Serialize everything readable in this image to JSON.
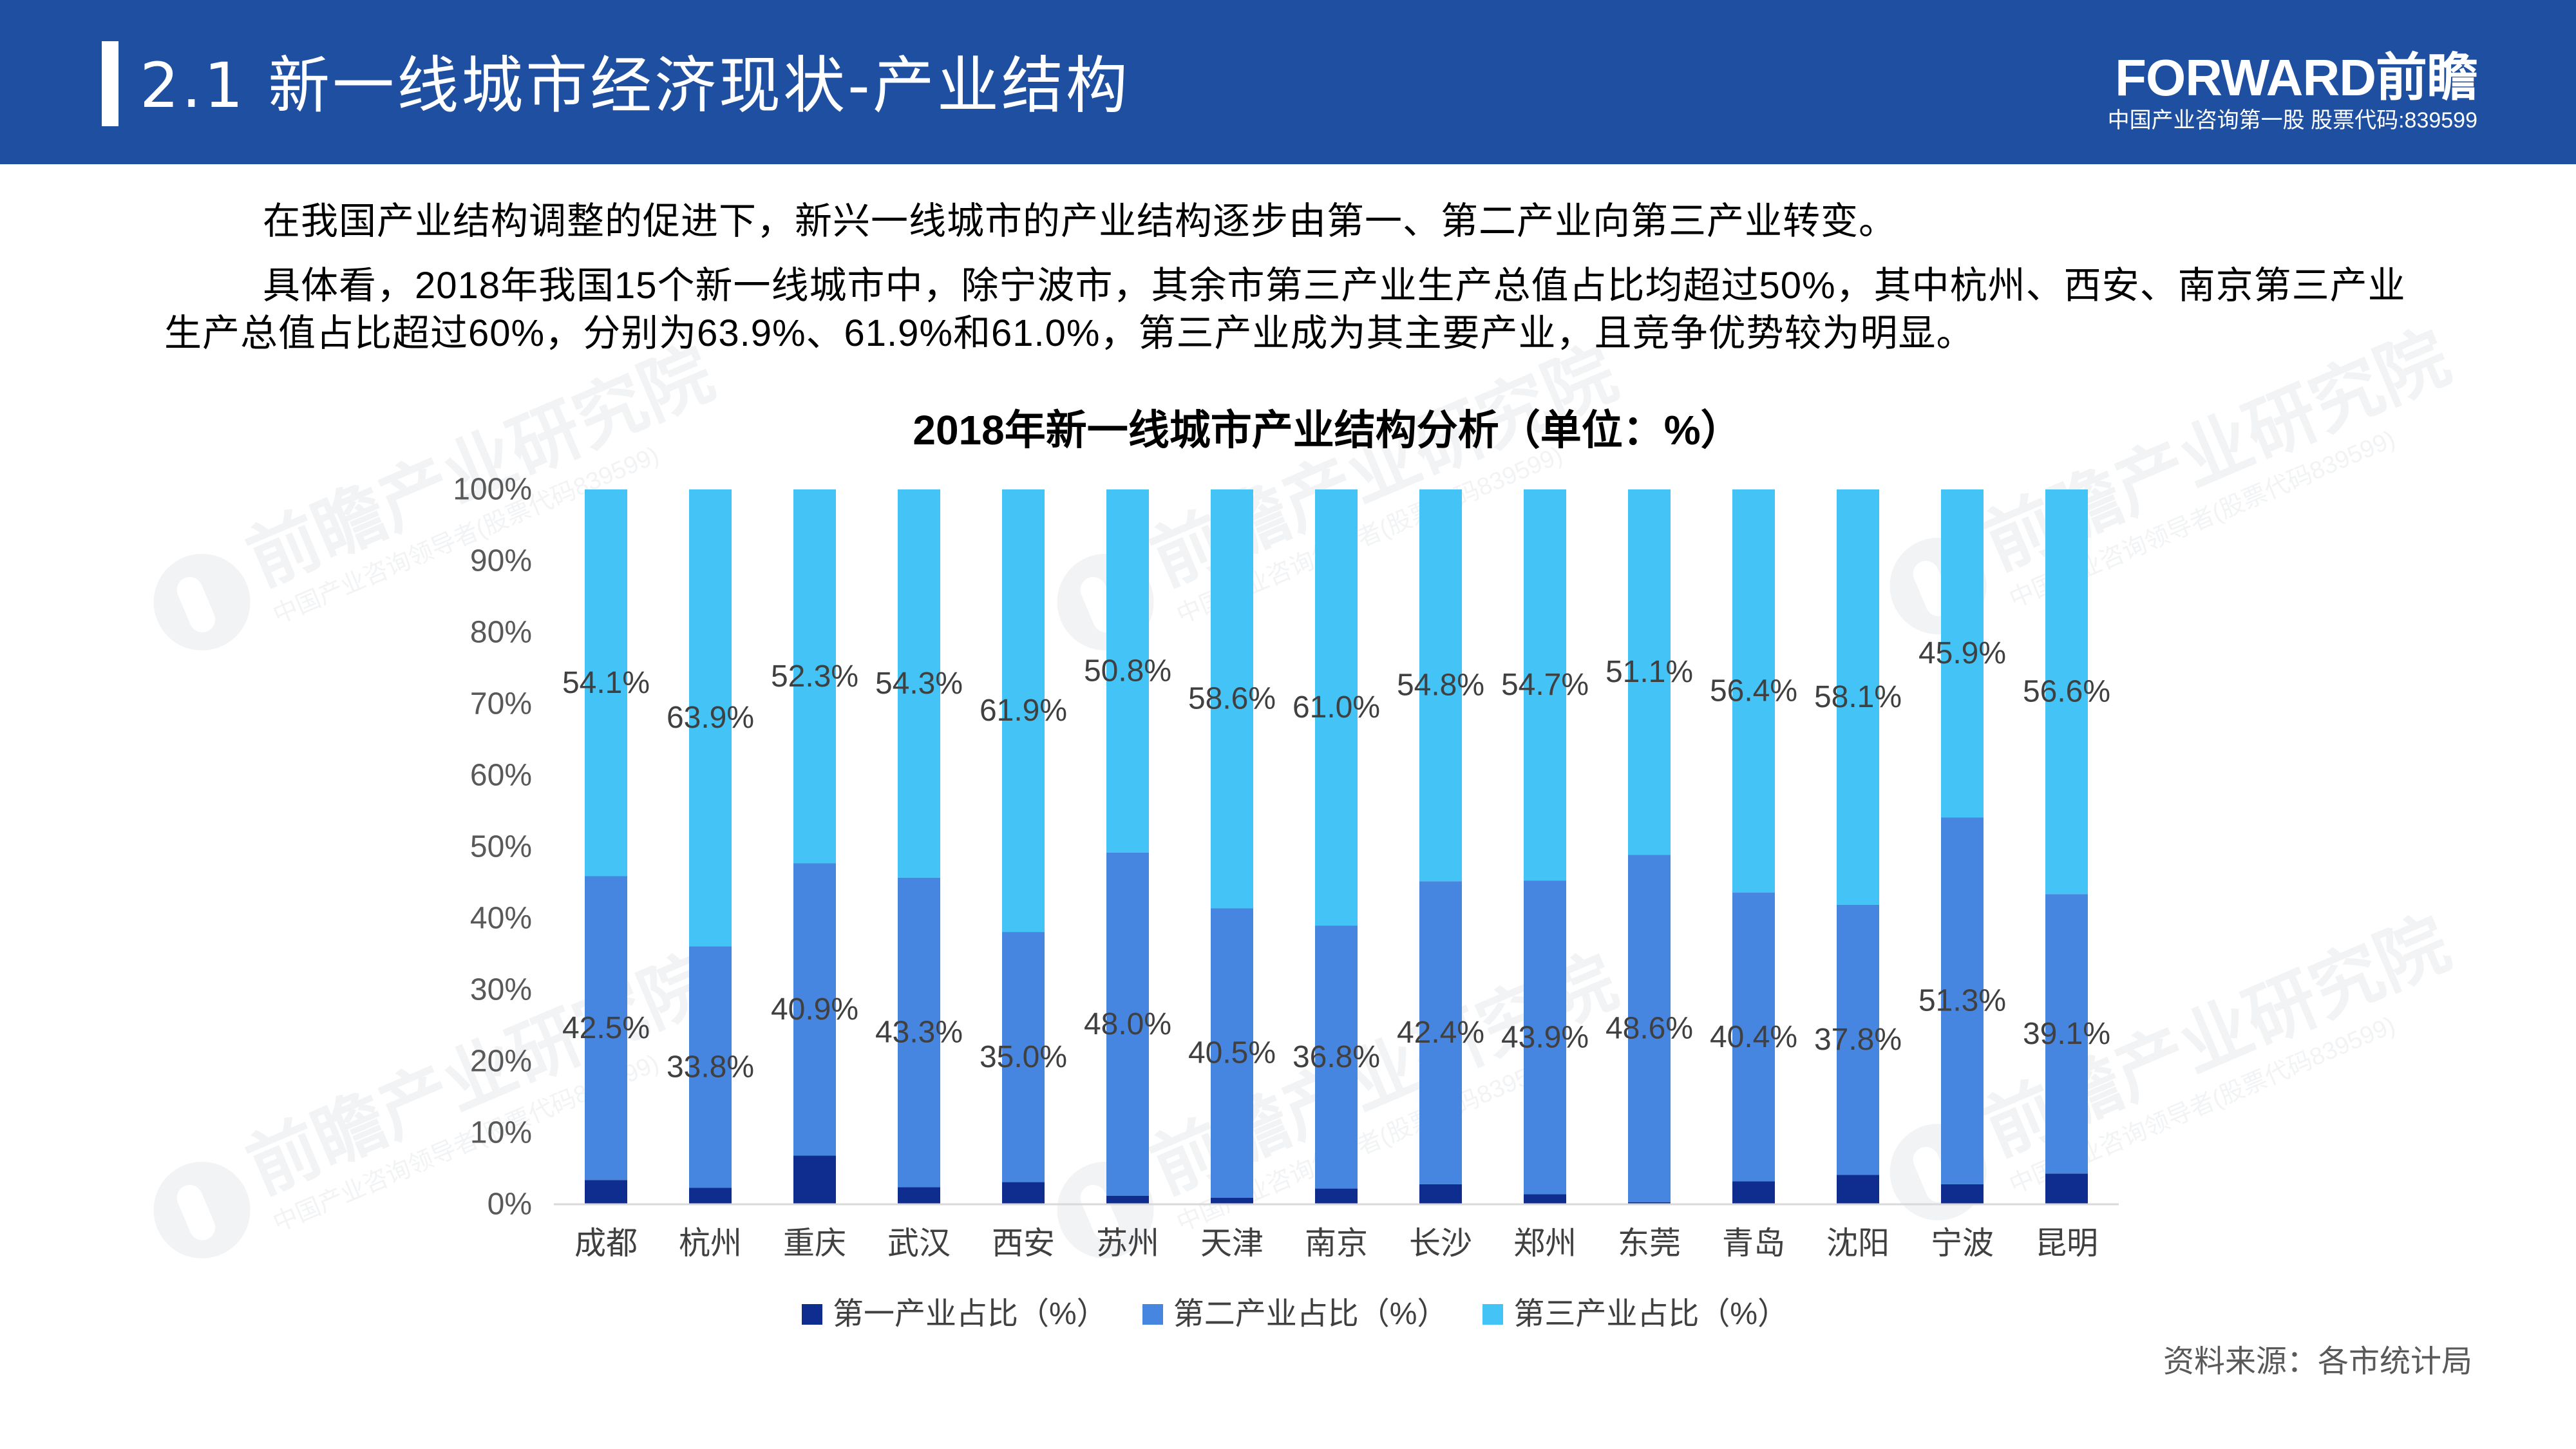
{
  "header": {
    "title": "2.1 新一线城市经济现状-产业结构",
    "logo_text": "FORWARD前瞻",
    "logo_subtitle": "中国产业咨询第一股 股票代码:839599",
    "band_color": "#1e4fa0"
  },
  "intro": {
    "paragraphs": [
      {
        "lines": [
          "在我国产业结构调整的促进下，新兴一线城市的产业结构逐步由第一、第二产业向第三产业转变。"
        ]
      },
      {
        "lines": [
          "具体看，2018年我国15个新一线城市中，除宁波市，其余市第三产业生产总值占比均超过50%，其中杭州、西安、南京第三产业",
          "生产总值占比超过60%，分别为63.9%、61.9%和61.0%，第三产业成为其主要产业，且竞争优势较为明显。"
        ]
      }
    ]
  },
  "chart_data": {
    "type": "bar",
    "stacked": true,
    "title": "2018年新一线城市产业结构分析（单位：%）",
    "categories": [
      "成都",
      "杭州",
      "重庆",
      "武汉",
      "西安",
      "苏州",
      "天津",
      "南京",
      "长沙",
      "郑州",
      "东莞",
      "青岛",
      "沈阳",
      "宁波",
      "昆明"
    ],
    "series": [
      {
        "name": "第一产业占比（%）",
        "color": "#0e2d8e",
        "data_labels": false,
        "values": [
          3.4,
          2.3,
          6.8,
          2.4,
          3.1,
          1.2,
          0.9,
          2.2,
          2.8,
          1.4,
          0.3,
          3.2,
          4.1,
          2.8,
          4.3
        ]
      },
      {
        "name": "第二产业占比（%）",
        "color": "#4686e0",
        "data_labels": true,
        "values": [
          42.5,
          33.8,
          40.9,
          43.3,
          35.0,
          48.0,
          40.5,
          36.8,
          42.4,
          43.9,
          48.6,
          40.4,
          37.8,
          51.3,
          39.1
        ]
      },
      {
        "name": "第三产业占比（%）",
        "color": "#43c3f6",
        "data_labels": true,
        "values": [
          54.1,
          63.9,
          52.3,
          54.3,
          61.9,
          50.8,
          58.6,
          61.0,
          54.8,
          54.7,
          51.1,
          56.4,
          58.1,
          45.9,
          56.6
        ]
      }
    ],
    "ylim": [
      0,
      100
    ],
    "yticks": [
      "0%",
      "10%",
      "20%",
      "30%",
      "40%",
      "50%",
      "60%",
      "70%",
      "80%",
      "90%",
      "100%"
    ],
    "data_label_unit": "%",
    "xlabel": "",
    "ylabel": "",
    "grid": false,
    "legend_position": "bottom"
  },
  "source": "资料来源：各市统计局",
  "watermark": {
    "name": "前瞻产业研究院",
    "tagline": "中国产业咨询领导者(股票代码839599)"
  }
}
